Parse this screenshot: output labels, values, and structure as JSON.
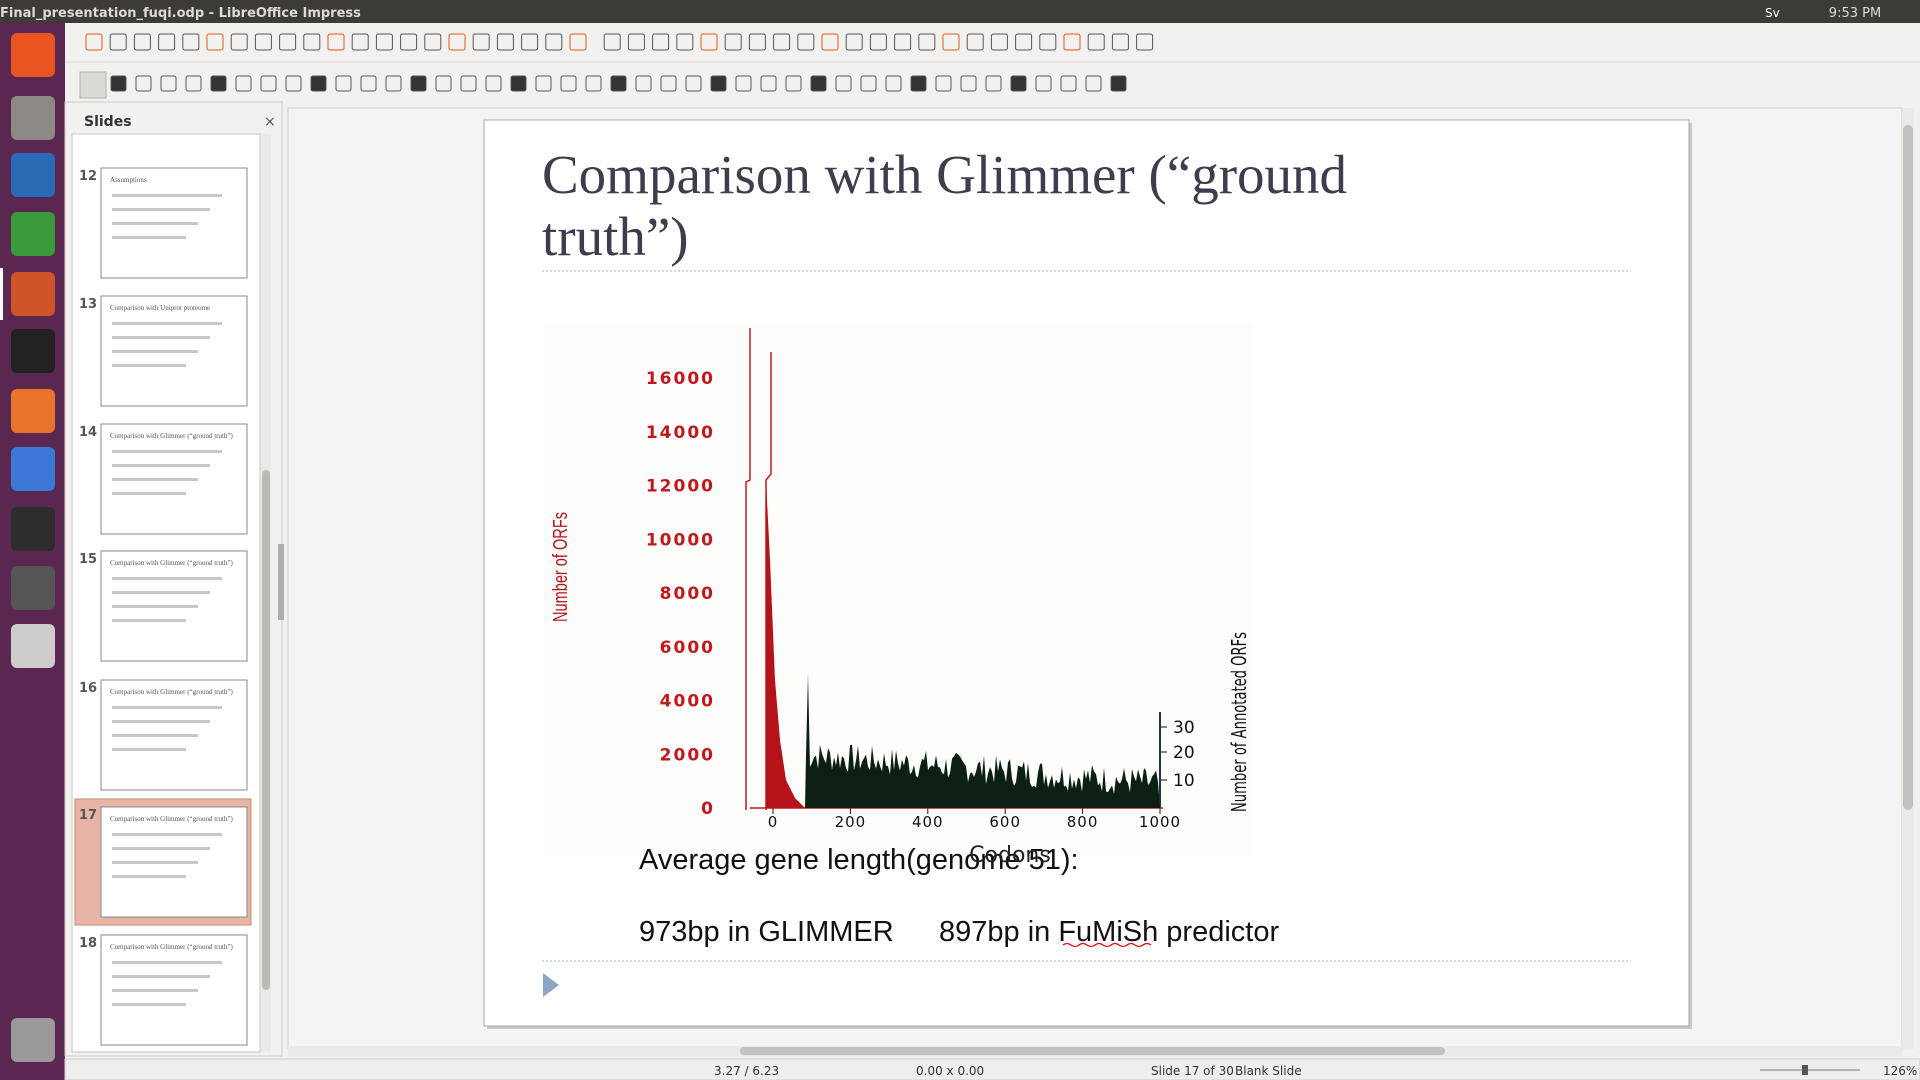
{
  "window": {
    "title": "Final_presentation_fuqi.odp - LibreOffice Impress",
    "keyboard": "Sv",
    "clock": "9:53 PM"
  },
  "slides_panel": {
    "title": "Slides",
    "thumbnails": [
      {
        "number": "12",
        "title": "Assumptions"
      },
      {
        "number": "13",
        "title": "Comparison with Uniprot proteome"
      },
      {
        "number": "14",
        "title": "Comparison with Glimmer (“ground truth”)"
      },
      {
        "number": "15",
        "title": "Comparison with Glimmer (“ground truth”)"
      },
      {
        "number": "16",
        "title": "Comparison with Glimmer (“ground truth”)"
      },
      {
        "number": "17",
        "title": "Comparison with Glimmer (“ground truth”)"
      },
      {
        "number": "18",
        "title": "Comparison with Glimmer (“ground truth”)"
      }
    ]
  },
  "slide": {
    "title_lines": [
      "Comparison with Glimmer (“ground",
      "truth”)"
    ],
    "figure": {
      "y_label": "Number of ORFs",
      "y_ticks": [
        "16000",
        "14000",
        "12000",
        "10000",
        "8000",
        "6000",
        "4000",
        "2000",
        "0"
      ],
      "x_label": "Codons",
      "x_ticks": [
        "0",
        "200",
        "400",
        "600",
        "800",
        "1000"
      ],
      "y2_label": "Number of Annotated ORFs",
      "y2_ticks": [
        "30",
        "20",
        "10"
      ]
    },
    "body": {
      "heading": "Average gene length(genome 51):",
      "glimmer": "973bp in GLIMMER",
      "fumish": "897bp in FuMiSh predictor"
    }
  },
  "status_bar": {
    "position": "3.27 / 6.23",
    "size": "0.00 x 0.00",
    "slide": "Slide 17 of 30",
    "layout": "Blank Slide",
    "zoom": "126%"
  }
}
